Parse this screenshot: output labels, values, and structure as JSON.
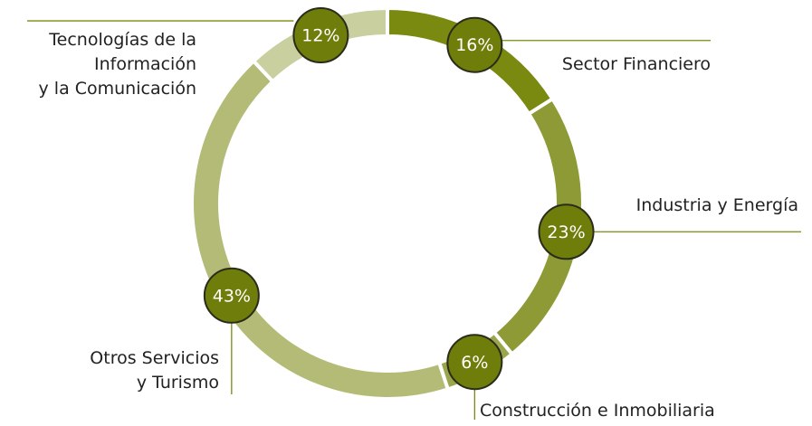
{
  "chart_data": {
    "type": "donut",
    "categories": [
      "Sector Financiero",
      "Industria y Energía",
      "Construcción e Inmobiliaria",
      "Otros Servicios\ny Turismo",
      "Tecnologías de la\nInformación\ny la Comunicación"
    ],
    "values": [
      16,
      23,
      6,
      43,
      12
    ],
    "value_labels": [
      "16%",
      "23%",
      "6%",
      "43%",
      "12%"
    ],
    "colors": [
      "#7a890f",
      "#8e9a35",
      "#9ba64c",
      "#b3bb76",
      "#c9cf9f"
    ]
  }
}
